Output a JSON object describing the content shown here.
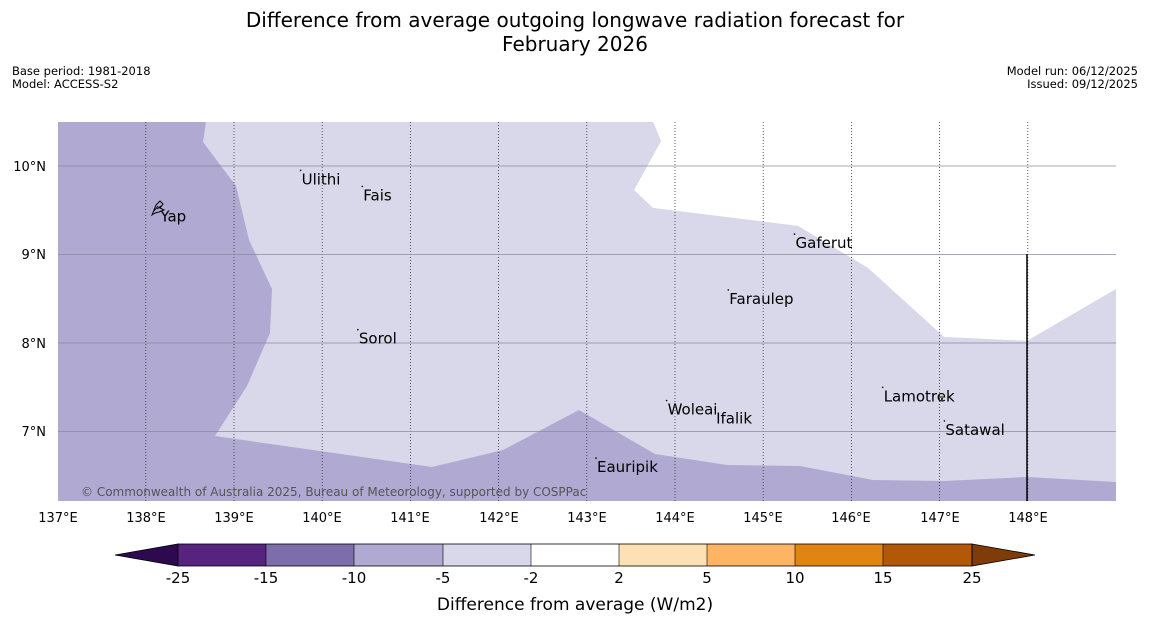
{
  "header": {
    "title_line1": "Difference from average outgoing longwave radiation forecast for",
    "title_line2": "February 2026",
    "base_period": "Base period: 1981-2018",
    "model": "Model: ACCESS-S2",
    "model_run": "Model run: 06/12/2025",
    "issued": "Issued: 09/12/2025"
  },
  "map": {
    "copyright": "© Commonwealth of Australia 2025, Bureau of Meteorology, supported by COSPPac",
    "lat_labels": [
      "10°N",
      "9°N",
      "8°N",
      "7°N"
    ],
    "lon_labels": [
      "137°E",
      "138°E",
      "139°E",
      "140°E",
      "141°E",
      "142°E",
      "143°E",
      "144°E",
      "145°E",
      "146°E",
      "147°E",
      "148°E"
    ],
    "places": [
      {
        "name": "Ulithi",
        "lon": 139.75,
        "lat": 9.95
      },
      {
        "name": "Fais",
        "lon": 140.45,
        "lat": 9.77
      },
      {
        "name": "Yap",
        "lon": 138.15,
        "lat": 9.53
      },
      {
        "name": "Gaferut",
        "lon": 145.35,
        "lat": 9.23
      },
      {
        "name": "Faraulep",
        "lon": 144.6,
        "lat": 8.6
      },
      {
        "name": "Sorol",
        "lon": 140.4,
        "lat": 8.15
      },
      {
        "name": "Woleai",
        "lon": 143.9,
        "lat": 7.35
      },
      {
        "name": "Ifalik",
        "lon": 144.45,
        "lat": 7.25
      },
      {
        "name": "Lamotrek",
        "lon": 146.35,
        "lat": 7.5
      },
      {
        "name": "Satawal",
        "lon": 147.05,
        "lat": 7.12
      },
      {
        "name": "Eauripik",
        "lon": 143.1,
        "lat": 6.7
      }
    ]
  },
  "colorbar": {
    "title": "Difference from average (W/m2)",
    "ticks": [
      "-25",
      "-15",
      "-10",
      "-5",
      "-2",
      "2",
      "5",
      "10",
      "15",
      "25"
    ],
    "colors": {
      "below_min": "#2d0a4f",
      "bins": [
        "#56237f",
        "#7d6daa",
        "#b0a9d1",
        "#d8d8ea",
        "#ffffff",
        "#fee0b5",
        "#fdb563",
        "#e08413",
        "#b35806"
      ],
      "above_max": "#7f3b08"
    }
  }
}
